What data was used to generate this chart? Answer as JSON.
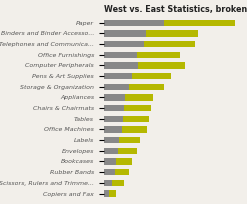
{
  "title": "West vs. East Statistics, broken down by category",
  "categories": [
    "Paper",
    "Binders and Binder Accesso...",
    "Telephones and Communica...",
    "Office Furnishings",
    "Computer Peripherals",
    "Pens & Art Supplies",
    "Storage & Organization",
    "Appliances",
    "Chairs & Chairmats",
    "Tables",
    "Office Machines",
    "Labels",
    "Envelopes",
    "Bookcases",
    "Rubber Bands",
    "Scissors, Rulers and Trimme...",
    "Copiers and Fax"
  ],
  "west_values": [
    100,
    70,
    68,
    55,
    58,
    48,
    42,
    35,
    33,
    32,
    30,
    25,
    24,
    20,
    18,
    14,
    8
  ],
  "east_values": [
    120,
    88,
    85,
    72,
    78,
    65,
    58,
    48,
    46,
    44,
    42,
    36,
    32,
    27,
    25,
    20,
    13
  ],
  "west_color": "#888888",
  "east_color": "#b5b800",
  "background_color": "#f2efea",
  "title_fontsize": 5.8,
  "label_fontsize": 4.5,
  "bar_height": 0.6
}
